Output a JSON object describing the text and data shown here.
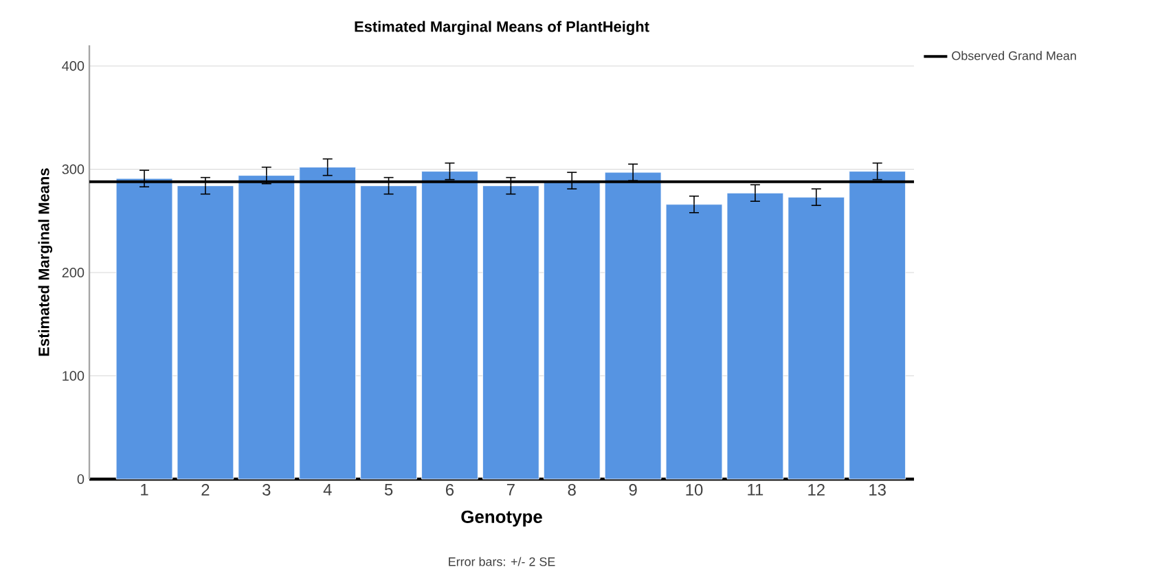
{
  "chart_data": {
    "type": "bar",
    "title": "Estimated Marginal Means of PlantHeight",
    "xlabel": "Genotype",
    "ylabel": "Estimated Marginal Means",
    "categories": [
      "1",
      "2",
      "3",
      "4",
      "5",
      "6",
      "7",
      "8",
      "9",
      "10",
      "11",
      "12",
      "13"
    ],
    "values": [
      291,
      284,
      294,
      302,
      284,
      298,
      284,
      289,
      297,
      266,
      277,
      273,
      298
    ],
    "errors": [
      8,
      8,
      8,
      8,
      8,
      8,
      8,
      8,
      8,
      8,
      8,
      8,
      8
    ],
    "color": "#5694e2",
    "ylim": [
      0,
      420
    ],
    "yticks": [
      0,
      100,
      200,
      300,
      400
    ],
    "grid": "y",
    "ref_lines": [
      {
        "axis": "y",
        "value": 288,
        "label": "Observed Grand Mean",
        "color": "#000000"
      }
    ],
    "legend": "top right",
    "annotations": [
      "Error bars: +/- 2 SE"
    ]
  }
}
